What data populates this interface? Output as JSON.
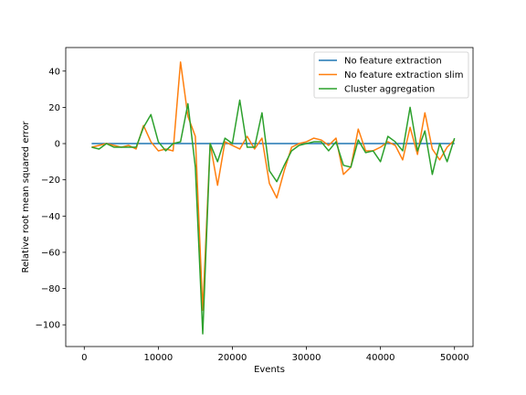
{
  "chart_data": {
    "type": "line",
    "title": "",
    "xlabel": "Events",
    "ylabel": "Relative root mean squared error",
    "xlim": [
      -2500,
      52500
    ],
    "ylim": [
      -112,
      53
    ],
    "xticks": [
      0,
      10000,
      20000,
      30000,
      40000,
      50000
    ],
    "xtick_labels": [
      "0",
      "10000",
      "20000",
      "30000",
      "40000",
      "50000"
    ],
    "yticks": [
      40,
      20,
      0,
      -20,
      -40,
      -60,
      -80,
      -100
    ],
    "ytick_labels": [
      "40",
      "20",
      "0",
      "−20",
      "−40",
      "−60",
      "−80",
      "−100"
    ],
    "grid": false,
    "legend_position": "top-right",
    "x": [
      1000,
      2000,
      3000,
      4000,
      5000,
      6000,
      7000,
      8000,
      9000,
      10000,
      11000,
      12000,
      13000,
      14000,
      15000,
      16000,
      17000,
      18000,
      19000,
      20000,
      21000,
      22000,
      23000,
      24000,
      25000,
      26000,
      27000,
      28000,
      29000,
      30000,
      31000,
      32000,
      33000,
      34000,
      35000,
      36000,
      37000,
      38000,
      39000,
      40000,
      41000,
      42000,
      43000,
      44000,
      45000,
      46000,
      47000,
      48000,
      49000,
      50000
    ],
    "series": [
      {
        "name": "No feature extraction",
        "color": "#1f77b4",
        "values": [
          0,
          0,
          0,
          0,
          0,
          0,
          0,
          0,
          0,
          0,
          0,
          0,
          0,
          0,
          0,
          0,
          0,
          0,
          0,
          0,
          0,
          0,
          0,
          0,
          0,
          0,
          0,
          0,
          0,
          0,
          0,
          0,
          0,
          0,
          0,
          0,
          0,
          0,
          0,
          0,
          0,
          0,
          0,
          0,
          0,
          0,
          0,
          0,
          0,
          0
        ]
      },
      {
        "name": "No feature extraction slim",
        "color": "#ff7f0e",
        "values": [
          -2,
          -1,
          0,
          -1,
          -2,
          -1,
          -3,
          10,
          1,
          -4,
          -3,
          -4,
          45,
          15,
          4,
          -92,
          0,
          -23,
          1,
          -1,
          -3,
          4,
          -3,
          3,
          -22,
          -30,
          -15,
          -2,
          0,
          1,
          3,
          2,
          -1,
          3,
          -17,
          -13,
          8,
          -4,
          -4,
          -2,
          1,
          -1,
          -9,
          9,
          -6,
          17,
          -3,
          -9,
          -2,
          2
        ]
      },
      {
        "name": "Cluster aggregation",
        "color": "#2ca02c",
        "values": [
          -2,
          -3,
          0,
          -2,
          -2,
          -2,
          -2,
          9,
          16,
          1,
          -4,
          0,
          1,
          22,
          -13,
          -105,
          0,
          -10,
          3,
          0,
          24,
          -2,
          -2,
          17,
          -15,
          -21,
          -12,
          -4,
          -1,
          0,
          1,
          1,
          -4,
          1,
          -12,
          -13,
          2,
          -5,
          -4,
          -10,
          4,
          1,
          -4,
          20,
          -4,
          7,
          -17,
          0,
          -10,
          3
        ]
      }
    ]
  }
}
